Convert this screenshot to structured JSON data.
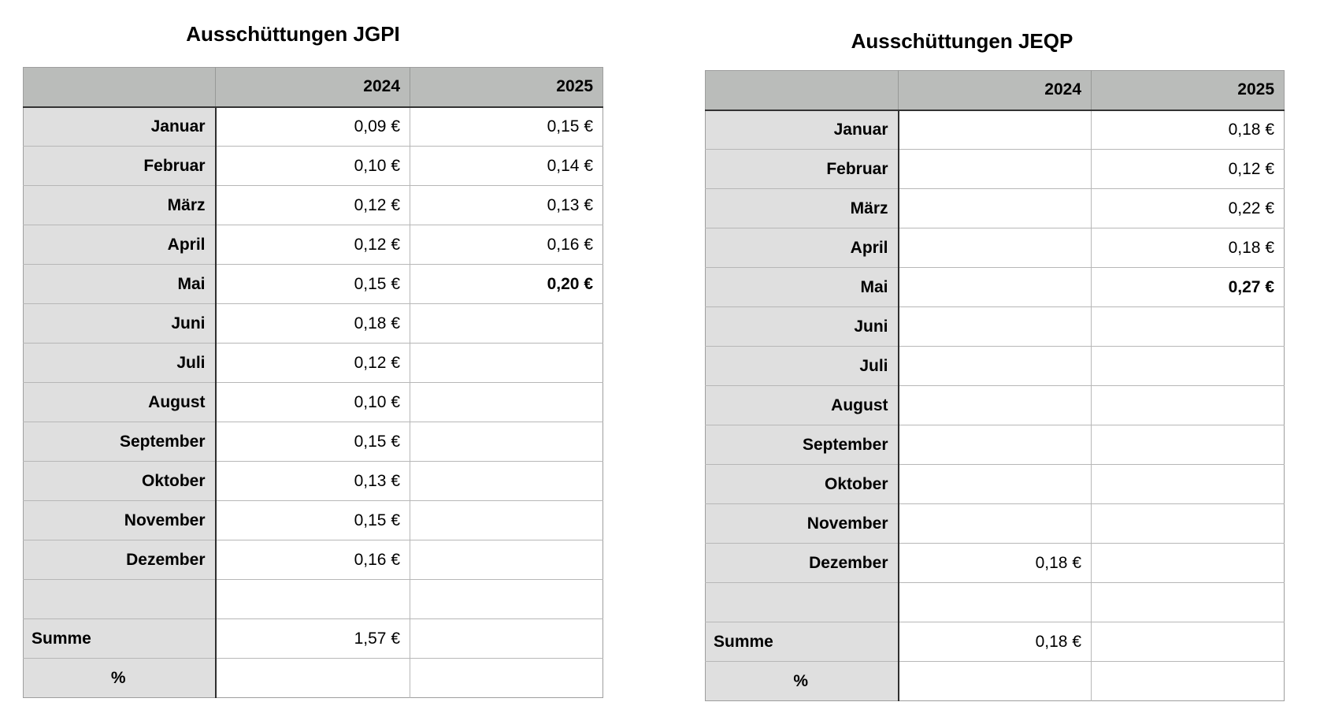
{
  "colors": {
    "page_bg": "#ffffff",
    "header_bg": "#babcba",
    "label_bg": "#dfdfdf",
    "cell_bg": "#ffffff",
    "grid_light": "#b7b7b7",
    "grid_dark": "#2f2f2f",
    "outer_border": "#9e9e9e",
    "text": "#000000"
  },
  "tables": [
    {
      "id": "jgpi",
      "title": "Ausschüttungen JGPI",
      "columns": [
        "",
        "2024",
        "2025"
      ],
      "rows": [
        {
          "label": "Januar",
          "align": "right",
          "values": [
            "0,09 €",
            "0,15 €"
          ],
          "bold": [
            false,
            false
          ]
        },
        {
          "label": "Februar",
          "align": "right",
          "values": [
            "0,10 €",
            "0,14 €"
          ],
          "bold": [
            false,
            false
          ]
        },
        {
          "label": "März",
          "align": "right",
          "values": [
            "0,12 €",
            "0,13 €"
          ],
          "bold": [
            false,
            false
          ]
        },
        {
          "label": "April",
          "align": "right",
          "values": [
            "0,12 €",
            "0,16 €"
          ],
          "bold": [
            false,
            false
          ]
        },
        {
          "label": "Mai",
          "align": "right",
          "values": [
            "0,15 €",
            "0,20 €"
          ],
          "bold": [
            false,
            true
          ]
        },
        {
          "label": "Juni",
          "align": "right",
          "values": [
            "0,18 €",
            ""
          ],
          "bold": [
            false,
            false
          ]
        },
        {
          "label": "Juli",
          "align": "right",
          "values": [
            "0,12 €",
            ""
          ],
          "bold": [
            false,
            false
          ]
        },
        {
          "label": "August",
          "align": "right",
          "values": [
            "0,10 €",
            ""
          ],
          "bold": [
            false,
            false
          ]
        },
        {
          "label": "September",
          "align": "right",
          "values": [
            "0,15 €",
            ""
          ],
          "bold": [
            false,
            false
          ]
        },
        {
          "label": "Oktober",
          "align": "right",
          "values": [
            "0,13 €",
            ""
          ],
          "bold": [
            false,
            false
          ]
        },
        {
          "label": "November",
          "align": "right",
          "values": [
            "0,15 €",
            ""
          ],
          "bold": [
            false,
            false
          ]
        },
        {
          "label": "Dezember",
          "align": "right",
          "values": [
            "0,16 €",
            ""
          ],
          "bold": [
            false,
            false
          ]
        },
        {
          "label": "",
          "align": "right",
          "values": [
            "",
            ""
          ],
          "bold": [
            false,
            false
          ]
        },
        {
          "label": "Summe",
          "align": "left",
          "values": [
            "1,57 €",
            ""
          ],
          "bold": [
            false,
            false
          ]
        },
        {
          "label": "%",
          "align": "center",
          "values": [
            "",
            ""
          ],
          "bold": [
            false,
            false
          ]
        }
      ]
    },
    {
      "id": "jeqp",
      "title": "Ausschüttungen JEQP",
      "columns": [
        "",
        "2024",
        "2025"
      ],
      "rows": [
        {
          "label": "Januar",
          "align": "right",
          "values": [
            "",
            "0,18 €"
          ],
          "bold": [
            false,
            false
          ]
        },
        {
          "label": "Februar",
          "align": "right",
          "values": [
            "",
            "0,12 €"
          ],
          "bold": [
            false,
            false
          ]
        },
        {
          "label": "März",
          "align": "right",
          "values": [
            "",
            "0,22 €"
          ],
          "bold": [
            false,
            false
          ]
        },
        {
          "label": "April",
          "align": "right",
          "values": [
            "",
            "0,18 €"
          ],
          "bold": [
            false,
            false
          ]
        },
        {
          "label": "Mai",
          "align": "right",
          "values": [
            "",
            "0,27 €"
          ],
          "bold": [
            false,
            true
          ]
        },
        {
          "label": "Juni",
          "align": "right",
          "values": [
            "",
            ""
          ],
          "bold": [
            false,
            false
          ]
        },
        {
          "label": "Juli",
          "align": "right",
          "values": [
            "",
            ""
          ],
          "bold": [
            false,
            false
          ]
        },
        {
          "label": "August",
          "align": "right",
          "values": [
            "",
            ""
          ],
          "bold": [
            false,
            false
          ]
        },
        {
          "label": "September",
          "align": "right",
          "values": [
            "",
            ""
          ],
          "bold": [
            false,
            false
          ]
        },
        {
          "label": "Oktober",
          "align": "right",
          "values": [
            "",
            ""
          ],
          "bold": [
            false,
            false
          ]
        },
        {
          "label": "November",
          "align": "right",
          "values": [
            "",
            ""
          ],
          "bold": [
            false,
            false
          ]
        },
        {
          "label": "Dezember",
          "align": "right",
          "values": [
            "0,18 €",
            ""
          ],
          "bold": [
            false,
            false
          ]
        },
        {
          "label": "",
          "align": "right",
          "values": [
            "",
            ""
          ],
          "bold": [
            false,
            false
          ]
        },
        {
          "label": "Summe",
          "align": "left",
          "values": [
            "0,18 €",
            ""
          ],
          "bold": [
            false,
            false
          ]
        },
        {
          "label": "%",
          "align": "center",
          "values": [
            "",
            ""
          ],
          "bold": [
            false,
            false
          ]
        }
      ]
    }
  ],
  "chart_data": [
    {
      "type": "table",
      "title": "Ausschüttungen JGPI",
      "categories": [
        "Januar",
        "Februar",
        "März",
        "April",
        "Mai",
        "Juni",
        "Juli",
        "August",
        "September",
        "Oktober",
        "November",
        "Dezember"
      ],
      "series": [
        {
          "name": "2024",
          "values": [
            0.09,
            0.1,
            0.12,
            0.12,
            0.15,
            0.18,
            0.12,
            0.1,
            0.15,
            0.13,
            0.15,
            0.16
          ]
        },
        {
          "name": "2025",
          "values": [
            0.15,
            0.14,
            0.13,
            0.16,
            0.2,
            null,
            null,
            null,
            null,
            null,
            null,
            null
          ]
        }
      ],
      "summe": {
        "2024": 1.57,
        "2025": null
      },
      "unit": "€"
    },
    {
      "type": "table",
      "title": "Ausschüttungen JEQP",
      "categories": [
        "Januar",
        "Februar",
        "März",
        "April",
        "Mai",
        "Juni",
        "Juli",
        "August",
        "September",
        "Oktober",
        "November",
        "Dezember"
      ],
      "series": [
        {
          "name": "2024",
          "values": [
            null,
            null,
            null,
            null,
            null,
            null,
            null,
            null,
            null,
            null,
            null,
            0.18
          ]
        },
        {
          "name": "2025",
          "values": [
            0.18,
            0.12,
            0.22,
            0.18,
            0.27,
            null,
            null,
            null,
            null,
            null,
            null,
            null
          ]
        }
      ],
      "summe": {
        "2024": 0.18,
        "2025": null
      },
      "unit": "€"
    }
  ]
}
